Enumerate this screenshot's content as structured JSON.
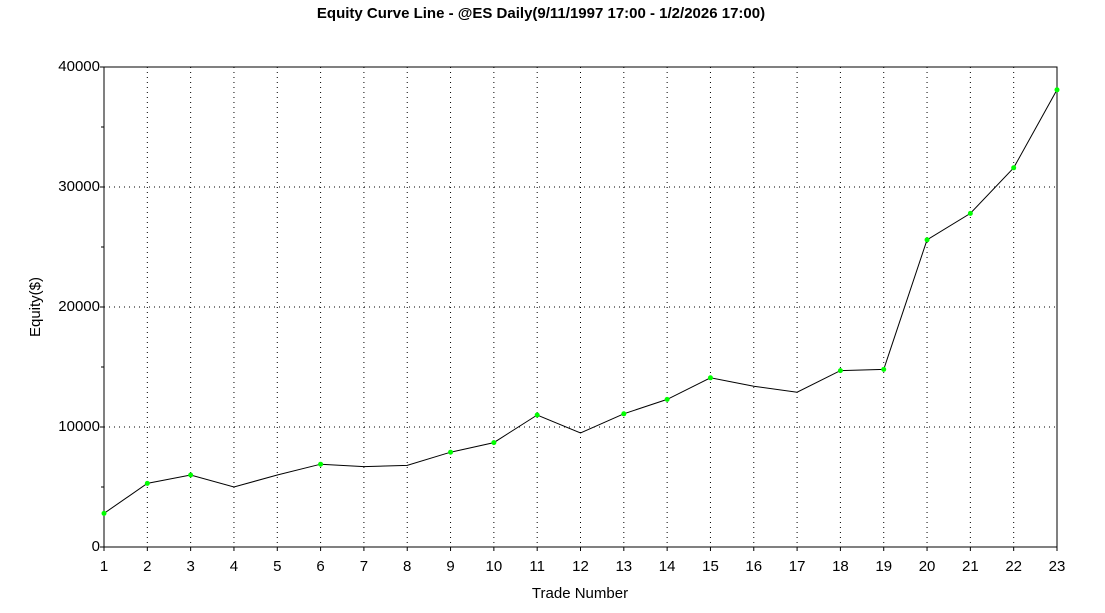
{
  "chart_data": {
    "type": "line",
    "title": "Equity Curve Line - @ES Daily(9/11/1997 17:00 - 1/2/2026 17:00)",
    "x_label": "Trade Number",
    "y_label": "Equity($)",
    "x": [
      1,
      2,
      3,
      4,
      5,
      6,
      7,
      8,
      9,
      10,
      11,
      12,
      13,
      14,
      15,
      16,
      17,
      18,
      19,
      20,
      21,
      22,
      23
    ],
    "series": [
      {
        "color": "#000000",
        "values": [
          2800,
          5300,
          6000,
          5000,
          6000,
          6900,
          6700,
          6800,
          7900,
          8700,
          11000,
          9500,
          11100,
          12300,
          14100,
          13400,
          12900,
          14700,
          14800,
          25600,
          27800,
          31600,
          38100
        ]
      },
      {
        "color": "#00ff00",
        "markers": true,
        "values": [
          2800,
          5300,
          6000,
          null,
          null,
          6900,
          null,
          null,
          7900,
          8700,
          11000,
          null,
          11100,
          12300,
          14100,
          null,
          null,
          14700,
          14800,
          25600,
          27800,
          31600,
          38100
        ]
      }
    ],
    "xlim": [
      1,
      23
    ],
    "xticks": [
      1,
      2,
      3,
      4,
      5,
      6,
      7,
      8,
      9,
      10,
      11,
      12,
      13,
      14,
      15,
      16,
      17,
      18,
      19,
      20,
      21,
      22,
      23
    ],
    "ylim": [
      0,
      40000
    ],
    "yticks": [
      0,
      10000,
      20000,
      30000,
      40000
    ],
    "minor_yticks": [
      5000,
      15000,
      25000,
      35000
    ],
    "grid": true
  }
}
